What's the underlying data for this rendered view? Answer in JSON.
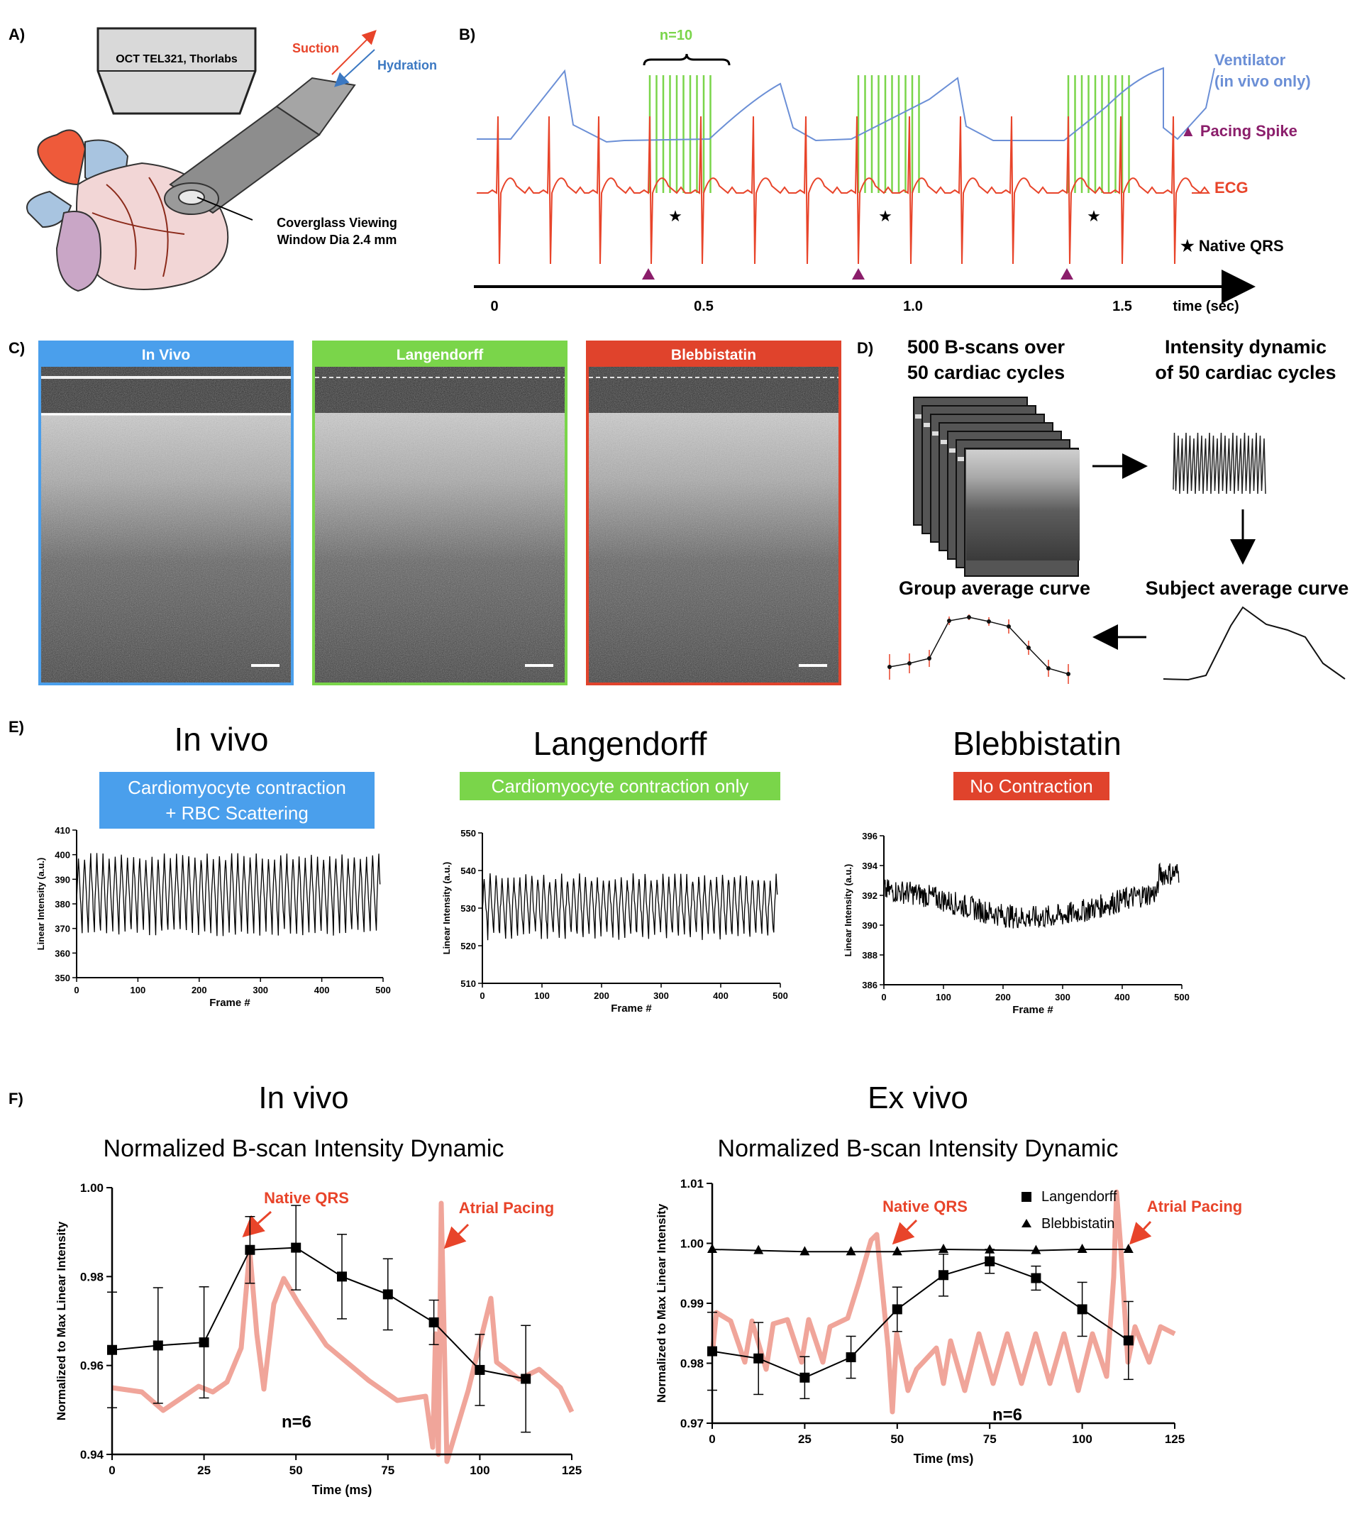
{
  "panel_labels": {
    "a": "A)",
    "b": "B)",
    "c": "C)",
    "d": "D)",
    "e": "E)",
    "f": "F)"
  },
  "panel_a": {
    "oct_label": "OCT TEL321, Thorlabs",
    "suction": "Suction",
    "hydration": "Hydration",
    "window_label_1": "Coverglass Viewing",
    "window_label_2": "Window Dia 2.4 mm"
  },
  "panel_b": {
    "n_label": "n=10",
    "ventilator_1": "Ventilator",
    "ventilator_2": "(in vivo only)",
    "pacing_spike": "▲ Pacing Spike",
    "ecg": "ECG",
    "native_qrs": "★ Native QRS",
    "time_label": "time (sec)",
    "ticks": [
      "0",
      "0.5",
      "1.0",
      "1.5"
    ],
    "colors": {
      "ventilator": "#6b8fd6",
      "ecg": "#e8442a",
      "scan": "#7ad54a",
      "pacing": "#8b1e6b"
    }
  },
  "panel_c": {
    "labels": [
      "In Vivo",
      "Langendorff",
      "Blebbistatin"
    ],
    "colors": [
      "#4a9fec",
      "#7ad54a",
      "#e0432c"
    ]
  },
  "panel_d": {
    "t1a": "500 B-scans over",
    "t1b": "50 cardiac cycles",
    "t2a": "Intensity dynamic",
    "t2b": "of 50 cardiac cycles",
    "t3": "Group average curve",
    "t4": "Subject average curve"
  },
  "panel_e": {
    "titles": [
      "In vivo",
      "Langendorff",
      "Blebbistatin"
    ],
    "badges": [
      [
        "Cardiomyocyte contraction",
        "+ RBC Scattering"
      ],
      [
        "Cardiomyocyte contraction only"
      ],
      [
        "No Contraction"
      ]
    ],
    "ylabel": "Linear Intensity (a.u.)",
    "xlabel": "Frame #",
    "xticks": [
      "0",
      "100",
      "200",
      "300",
      "400",
      "500"
    ],
    "yticks": [
      [
        "350",
        "360",
        "370",
        "380",
        "390",
        "400",
        "410"
      ],
      [
        "510",
        "520",
        "530",
        "540",
        "550"
      ],
      [
        "386",
        "388",
        "390",
        "392",
        "394",
        "396"
      ]
    ]
  },
  "chart_data": [
    {
      "type": "line",
      "title": "In vivo",
      "subtitle": "Normalized B-scan Intensity Dynamic",
      "xlabel": "Time (ms)",
      "ylabel": "Normalized to Max Linear Intensity",
      "xlim": [
        0,
        125
      ],
      "ylim": [
        0.94,
        1.0
      ],
      "xticks": [
        "0",
        "25",
        "50",
        "75",
        "100",
        "125"
      ],
      "yticks": [
        "0.94",
        "0.96",
        "0.98",
        "1.00"
      ],
      "series": [
        {
          "name": "In vivo",
          "x": [
            0,
            12.5,
            25,
            37.5,
            50,
            62.5,
            75,
            87.5,
            100,
            112.5
          ],
          "values": [
            0.9635,
            0.9645,
            0.9652,
            0.986,
            0.9865,
            0.98,
            0.976,
            0.9697,
            0.959,
            0.957
          ],
          "err": [
            0.013,
            0.013,
            0.0125,
            0.0075,
            0.0095,
            0.0095,
            0.008,
            0.005,
            0.008,
            0.012
          ]
        }
      ],
      "annotations": [
        "Native QRS",
        "Atrial Pacing",
        "n=6"
      ]
    },
    {
      "type": "line",
      "title": "Ex vivo",
      "subtitle": "Normalized B-scan Intensity Dynamic",
      "xlabel": "Time (ms)",
      "ylabel": "Normalized to Max Linear Intensity",
      "xlim": [
        0,
        125
      ],
      "ylim": [
        0.97,
        1.01
      ],
      "xticks": [
        "0",
        "25",
        "50",
        "75",
        "100",
        "125"
      ],
      "yticks": [
        "0.97",
        "0.98",
        "0.99",
        "1.00",
        "1.01"
      ],
      "series": [
        {
          "name": "Langendorff",
          "marker": "square",
          "x": [
            0,
            12.5,
            25,
            37.5,
            50,
            62.5,
            75,
            87.5,
            100,
            112.5
          ],
          "values": [
            0.982,
            0.9808,
            0.9776,
            0.981,
            0.989,
            0.9947,
            0.997,
            0.9942,
            0.989,
            0.9838
          ],
          "err": [
            0.0065,
            0.006,
            0.0035,
            0.0035,
            0.0037,
            0.0035,
            0.002,
            0.002,
            0.0045,
            0.0065
          ]
        },
        {
          "name": "Blebbistatin",
          "marker": "triangle",
          "x": [
            0,
            12.5,
            25,
            37.5,
            50,
            62.5,
            75,
            87.5,
            100,
            112.5
          ],
          "values": [
            0.999,
            0.9988,
            0.9986,
            0.9986,
            0.9986,
            0.999,
            0.9989,
            0.9988,
            0.999,
            0.999
          ]
        }
      ],
      "annotations": [
        "Native QRS",
        "Atrial Pacing",
        "n=6"
      ]
    }
  ]
}
